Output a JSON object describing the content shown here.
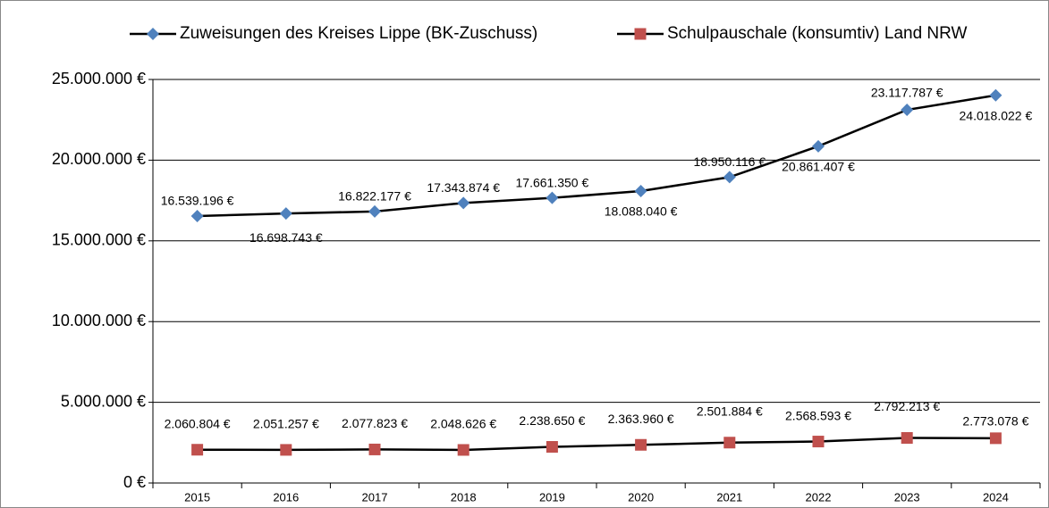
{
  "chart_data": {
    "type": "line",
    "categories": [
      "2015",
      "2016",
      "2017",
      "2018",
      "2019",
      "2020",
      "2021",
      "2022",
      "2023",
      "2024"
    ],
    "series": [
      {
        "name": "Zuweisungen des Kreises Lippe (BK-Zuschuss)",
        "color": "#4f81bd",
        "marker": "diamond",
        "values": [
          16539196,
          16698743,
          16822177,
          17343874,
          17661350,
          18088040,
          18950116,
          20861407,
          23117787,
          24018022
        ],
        "value_labels": [
          "16.539.196 €",
          "16.698.743 €",
          "16.822.177 €",
          "17.343.874 €",
          "17.661.350 €",
          "18.088.040 €",
          "18.950.116 €",
          "20.861.407 €",
          "23.117.787 €",
          "24.018.022 €"
        ]
      },
      {
        "name": "Schulpauschale (konsumtiv) Land NRW",
        "color": "#c0504d",
        "marker": "square",
        "values": [
          2060804,
          2051257,
          2077823,
          2048626,
          2238650,
          2363960,
          2501884,
          2568593,
          2792213,
          2773078
        ],
        "value_labels": [
          "2.060.804 €",
          "2.051.257 €",
          "2.077.823 €",
          "2.048.626 €",
          "2.238.650 €",
          "2.363.960 €",
          "2.501.884 €",
          "2.568.593 €",
          "2.792.213 €",
          "2.773.078 €"
        ]
      }
    ],
    "ylim": [
      0,
      25000000
    ],
    "yticks": [
      {
        "value": 0,
        "label": "0 €"
      },
      {
        "value": 5000000,
        "label": "5.000.000 €"
      },
      {
        "value": 10000000,
        "label": "10.000.000 €"
      },
      {
        "value": 15000000,
        "label": "15.000.000 €"
      },
      {
        "value": 20000000,
        "label": "20.000.000 €"
      },
      {
        "value": 25000000,
        "label": "25.000.000 €"
      }
    ],
    "grid": true,
    "legend": "top"
  }
}
